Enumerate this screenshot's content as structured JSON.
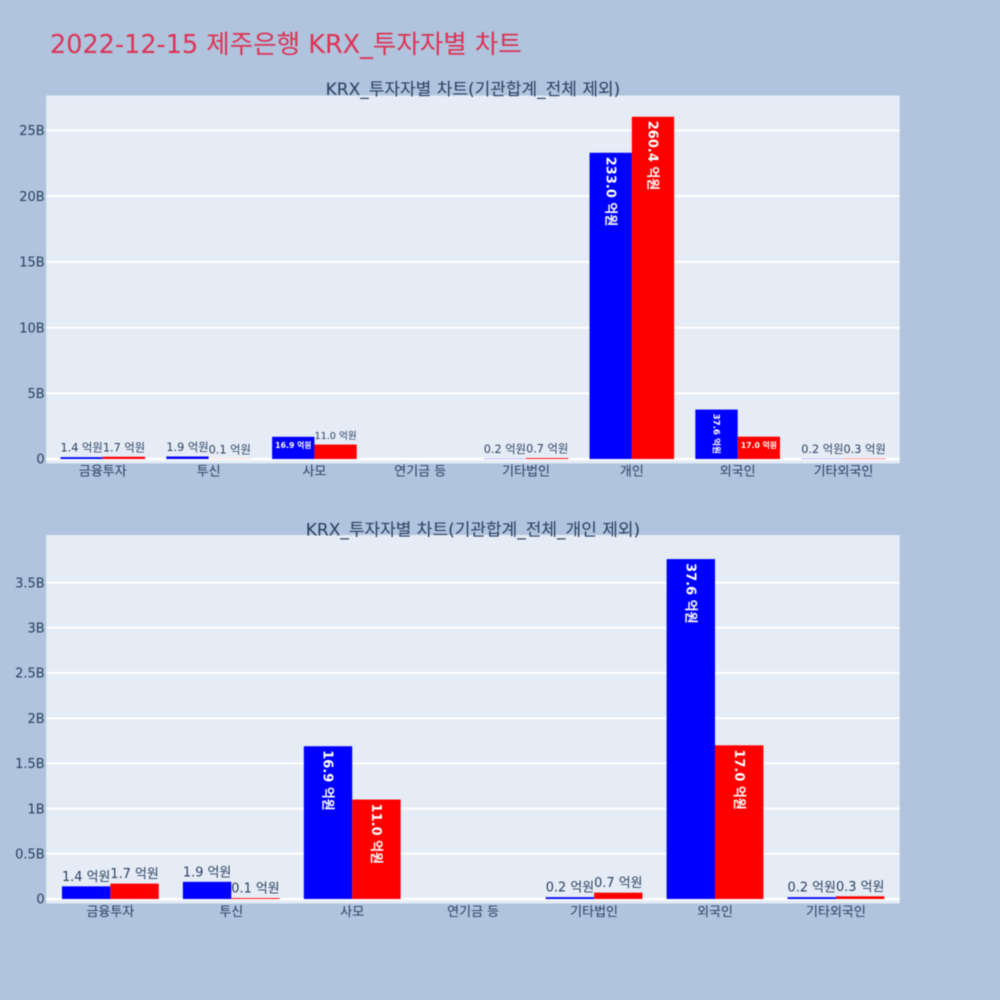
{
  "figure": {
    "title": "2022-12-15 제주은행 KRX_투자자별 차트",
    "title_color": "#dc3354",
    "background_color": "#b0c4de",
    "plot_background_color": "#e5ecf6"
  },
  "chart_data": [
    {
      "type": "bar",
      "title": "KRX_투자자별 차트(기관합계_전체 제외)",
      "unit": "억원",
      "categories": [
        "금융투자",
        "투신",
        "사모",
        "연기금 등",
        "기타법인",
        "개인",
        "외국인",
        "기타외국인"
      ],
      "yticks": [
        "0",
        "5B",
        "10B",
        "15B",
        "20B",
        "25B"
      ],
      "ytick_step_eokwon": 50,
      "ylim_eokwon": [
        0,
        280
      ],
      "grid": true,
      "legend": false,
      "series": [
        {
          "color": "#0000ff",
          "values": [
            1.4,
            1.9,
            16.9,
            0,
            0.2,
            233.0,
            37.6,
            0.2
          ],
          "labels": [
            "1.4 억원",
            "1.9 억원",
            "16.9 억원",
            "",
            "0.2 억원",
            "233.0 억원",
            "37.6 억원",
            "0.2 억원"
          ],
          "label_placements": [
            "out",
            "out",
            "in-h",
            "none",
            "out",
            "in-v",
            "in-v",
            "out"
          ]
        },
        {
          "color": "#ff0000",
          "values": [
            1.7,
            0.1,
            11.0,
            0,
            0.7,
            260.4,
            17.0,
            0.3
          ],
          "labels": [
            "1.7 억원",
            "0.1 억원",
            "11.0 억원",
            "",
            "0.7 억원",
            "260.4 억원",
            "17.0 억원",
            "0.3 억원"
          ],
          "label_placements": [
            "out",
            "out",
            "out",
            "none",
            "out",
            "in-v",
            "in-h",
            "out"
          ]
        }
      ]
    },
    {
      "type": "bar",
      "title": "KRX_투자자별 차트(기관합계_전체_개인 제외)",
      "unit": "억원",
      "categories": [
        "금융투자",
        "투신",
        "사모",
        "연기금 등",
        "기타법인",
        "외국인",
        "기타외국인"
      ],
      "yticks": [
        "0",
        "0.5B",
        "1B",
        "1.5B",
        "2B",
        "2.5B",
        "3B",
        "3.5B"
      ],
      "ytick_step_eokwon": 5,
      "ylim_eokwon": [
        0,
        40
      ],
      "grid": true,
      "legend": false,
      "series": [
        {
          "color": "#0000ff",
          "values": [
            1.4,
            1.9,
            16.9,
            0,
            0.2,
            37.6,
            0.2
          ],
          "labels": [
            "1.4 억원",
            "1.9 억원",
            "16.9 억원",
            "",
            "0.2 억원",
            "37.6 억원",
            "0.2 억원"
          ],
          "label_placements": [
            "out",
            "out",
            "in-v",
            "none",
            "out",
            "in-v",
            "out"
          ]
        },
        {
          "color": "#ff0000",
          "values": [
            1.7,
            0.1,
            11.0,
            0,
            0.7,
            17.0,
            0.3
          ],
          "labels": [
            "1.7 억원",
            "0.1 억원",
            "11.0 억원",
            "",
            "0.7 억원",
            "17.0 억원",
            "0.3 억원"
          ],
          "label_placements": [
            "out",
            "out",
            "in-v",
            "none",
            "out",
            "in-v",
            "out"
          ]
        }
      ]
    }
  ],
  "text_colors": {
    "axis": "#2a3f5f",
    "inside_label": "#ffffff"
  }
}
